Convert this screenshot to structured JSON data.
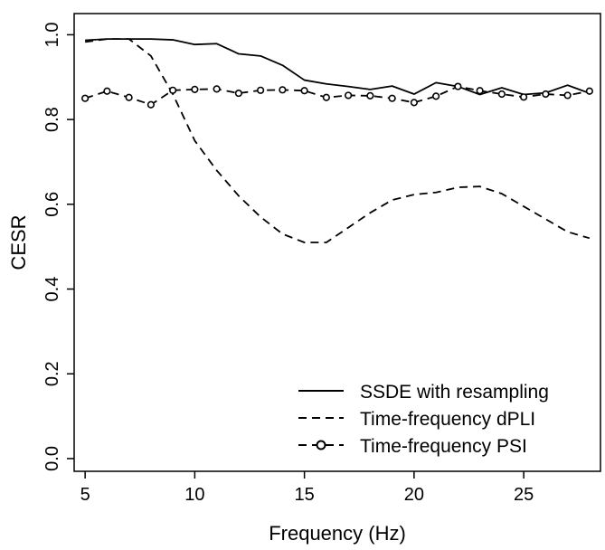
{
  "chart_data": {
    "type": "line",
    "title": "",
    "xlabel": "Frequency (Hz)",
    "ylabel": "CESR",
    "xlim": [
      4.5,
      28.5
    ],
    "ylim": [
      -0.03,
      1.05
    ],
    "x_ticks": [
      5,
      10,
      15,
      20,
      25
    ],
    "x_tick_labels": [
      "5",
      "10",
      "15",
      "20",
      "25"
    ],
    "y_ticks": [
      0.0,
      0.2,
      0.4,
      0.6,
      0.8,
      1.0
    ],
    "y_tick_labels": [
      "0.0",
      "0.2",
      "0.4",
      "0.6",
      "0.8",
      "1.0"
    ],
    "grid": false,
    "legend_position": "bottom-right",
    "x": [
      5,
      6,
      7,
      8,
      9,
      10,
      11,
      12,
      13,
      14,
      15,
      16,
      17,
      18,
      19,
      20,
      21,
      22,
      23,
      24,
      25,
      26,
      27,
      28
    ],
    "series": [
      {
        "name": "SSDE with resampling",
        "style": "solid",
        "marker": "none",
        "values": [
          0.987,
          0.99,
          0.99,
          0.99,
          0.988,
          0.977,
          0.979,
          0.955,
          0.95,
          0.928,
          0.893,
          0.884,
          0.878,
          0.871,
          0.879,
          0.86,
          0.887,
          0.878,
          0.859,
          0.875,
          0.859,
          0.863,
          0.881,
          0.862
        ]
      },
      {
        "name": "Time-frequency dPLI",
        "style": "dashed",
        "marker": "none",
        "values": [
          0.983,
          0.99,
          0.99,
          0.95,
          0.86,
          0.75,
          0.68,
          0.62,
          0.57,
          0.53,
          0.51,
          0.51,
          0.545,
          0.58,
          0.61,
          0.623,
          0.628,
          0.64,
          0.642,
          0.625,
          0.595,
          0.565,
          0.535,
          0.52
        ]
      },
      {
        "name": "Time-frequency PSI",
        "style": "dashed",
        "marker": "circle",
        "values": [
          0.85,
          0.867,
          0.852,
          0.835,
          0.869,
          0.871,
          0.872,
          0.862,
          0.869,
          0.87,
          0.868,
          0.852,
          0.857,
          0.856,
          0.85,
          0.84,
          0.855,
          0.878,
          0.868,
          0.86,
          0.853,
          0.86,
          0.857,
          0.867
        ]
      }
    ]
  }
}
